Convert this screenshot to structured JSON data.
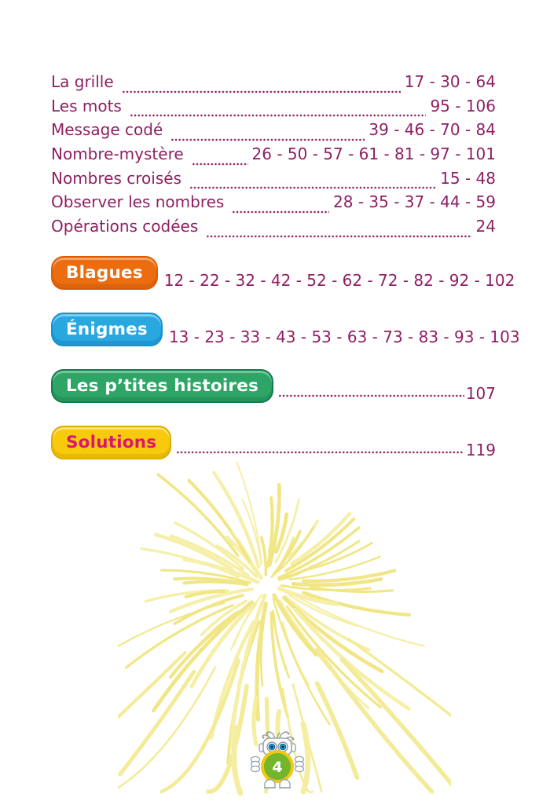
{
  "toc": {
    "entries": [
      {
        "label": "La grille",
        "pages": "17 - 30 - 64"
      },
      {
        "label": "Les mots",
        "pages": "95 - 106"
      },
      {
        "label": "Message codé",
        "pages": "39 - 46 - 70 - 84"
      },
      {
        "label": "Nombre-mystère",
        "pages": "26 - 50 - 57 - 61 - 81 - 97 - 101"
      },
      {
        "label": "Nombres croisés",
        "pages": "15 - 48"
      },
      {
        "label": "Observer les nombres",
        "pages": "28 - 35 - 37 - 44 - 59"
      },
      {
        "label": "Opérations codées",
        "pages": "24"
      }
    ],
    "sections": [
      {
        "label": "Blagues",
        "pages": "12 - 22 - 32 - 42 - 52 - 62 - 72 - 82 - 92 - 102",
        "badge_color": "#ec6d10",
        "text_color": "#ffffff"
      },
      {
        "label": "Énigmes",
        "pages": "13 - 23 - 33 - 43 - 53 - 63 - 73 - 83 - 93 - 103",
        "badge_color": "#29a8e0",
        "text_color": "#ffffff"
      },
      {
        "label": "Les p’tites histoires",
        "pages": "107",
        "badge_color": "#2ea566",
        "text_color": "#ffffff"
      },
      {
        "label": "Solutions",
        "pages": "119",
        "badge_color": "#f7ca0c",
        "text_color": "#d9176e"
      }
    ]
  },
  "footer": {
    "page_number": "4"
  },
  "colors": {
    "body_text": "#8e1f63",
    "leader_dots": "#8e2063",
    "fireworks": "#f3e88f",
    "robot_body": "#74b62b",
    "robot_ring": "#f2c713",
    "robot_eye": "#1b9cd8"
  }
}
